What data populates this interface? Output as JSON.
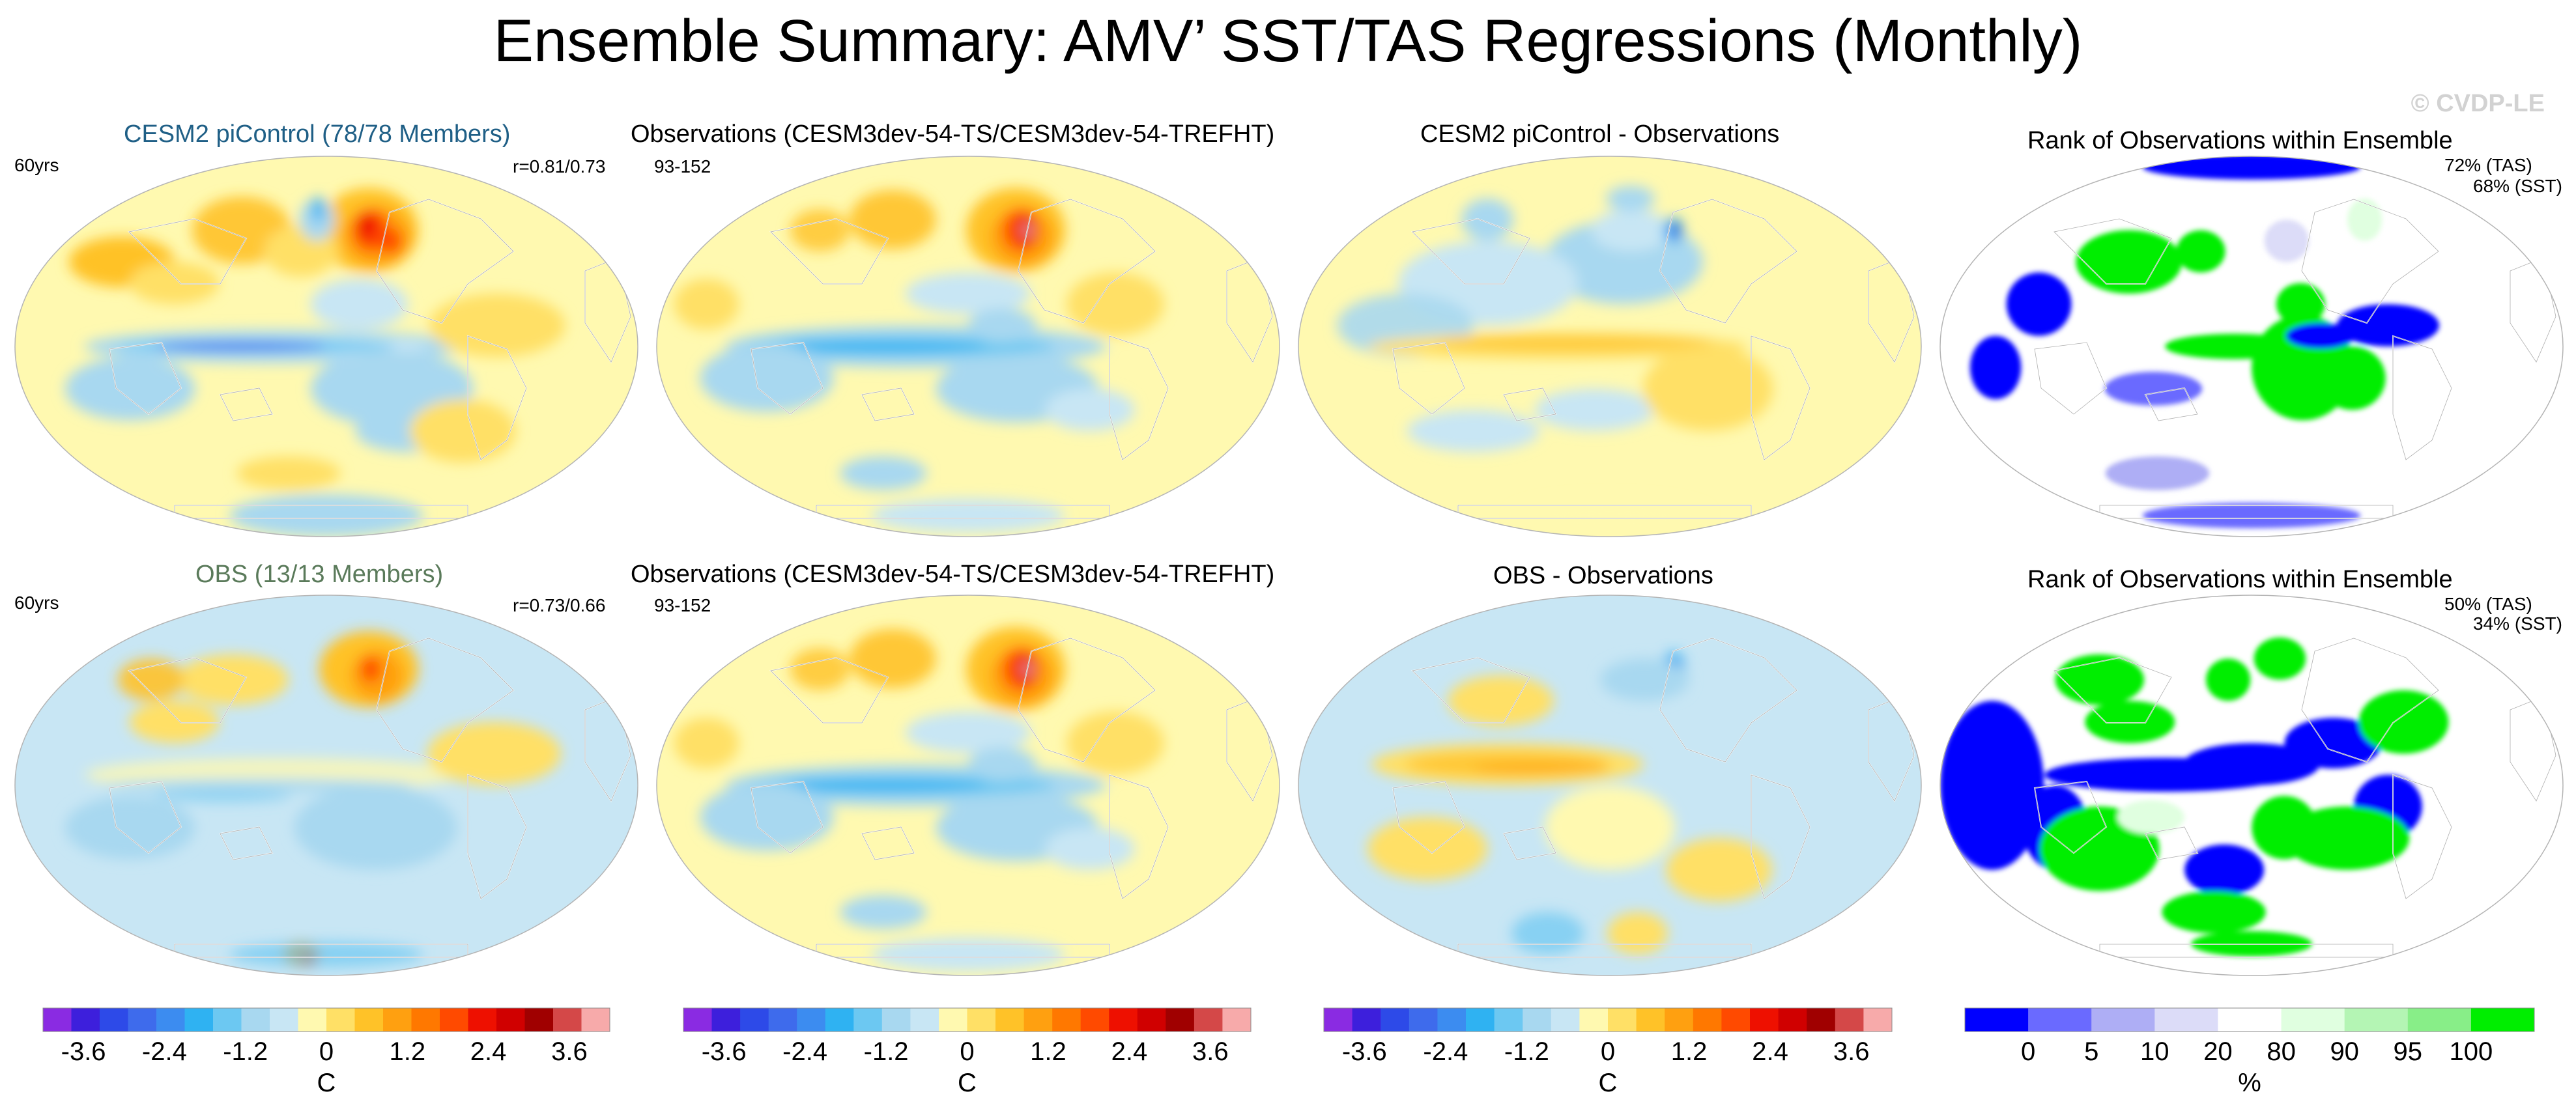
{
  "title": "Ensemble Summary: AMV’ SST/TAS Regressions (Monthly)",
  "watermark": "© CVDP-LE",
  "colors": {
    "cesm2_title": "#1f5f86",
    "obs_title": "#5a7a5a",
    "diverging": [
      "#8a2be2",
      "#3d1fdc",
      "#2d4ae8",
      "#3e6bec",
      "#3c8cf0",
      "#2fb2f2",
      "#6cc8f2",
      "#a8d8f0",
      "#c8e6f4",
      "#fff9b0",
      "#ffe066",
      "#ffc228",
      "#ffa010",
      "#ff7800",
      "#ff4a00",
      "#ee1000",
      "#d00000",
      "#a00000",
      "#d44848",
      "#f7aaaa"
    ],
    "rank": [
      "#0000ff",
      "#6a6aff",
      "#aeaef5",
      "#dcdcf8",
      "#ffffff",
      "#e0ffe0",
      "#b4f5b4",
      "#88ee88",
      "#00ee00"
    ]
  },
  "rows": [
    {
      "panels": [
        {
          "title": "CESM2 piControl (78/78 Members)",
          "left_label": "60yrs",
          "right_label": "r=0.81/0.73",
          "kind": "diverging",
          "scheme": "cesm_pi"
        },
        {
          "title": "Observations (CESM3dev-54-TS/CESM3dev-54-TREFHT)",
          "left_label": "93-152",
          "right_label": "",
          "kind": "diverging",
          "scheme": "obs"
        },
        {
          "title": "CESM2 piControl - Observations",
          "left_label": "",
          "right_label": "",
          "kind": "diverging",
          "scheme": "diff1"
        },
        {
          "title": "Rank of Observations within Ensemble",
          "left_label": "",
          "right_label": "72% (TAS)",
          "right_label2": "68% (SST)",
          "kind": "rank",
          "scheme": "rank1"
        }
      ]
    },
    {
      "panels": [
        {
          "title": "OBS (13/13 Members)",
          "left_label": "60yrs",
          "right_label": "r=0.73/0.66",
          "kind": "diverging",
          "scheme": "obs_ens"
        },
        {
          "title": "Observations (CESM3dev-54-TS/CESM3dev-54-TREFHT)",
          "left_label": "93-152",
          "right_label": "",
          "kind": "diverging",
          "scheme": "obs"
        },
        {
          "title": "OBS - Observations",
          "left_label": "",
          "right_label": "",
          "kind": "diverging",
          "scheme": "diff2"
        },
        {
          "title": "Rank of Observations within Ensemble",
          "left_label": "",
          "right_label": "50% (TAS)",
          "right_label2": "34% (SST)",
          "kind": "rank",
          "scheme": "rank2"
        }
      ]
    }
  ],
  "colorbars": [
    {
      "type": "diverging",
      "ticks": [
        "-3.6",
        "-2.4",
        "-1.2",
        "0",
        "1.2",
        "2.4",
        "3.6"
      ],
      "tick_values": [
        -3.6,
        -2.4,
        -1.2,
        0,
        1.2,
        2.4,
        3.6
      ],
      "range": [
        -4.2,
        4.2
      ],
      "unit": "C"
    },
    {
      "type": "diverging",
      "ticks": [
        "-3.6",
        "-2.4",
        "-1.2",
        "0",
        "1.2",
        "2.4",
        "3.6"
      ],
      "tick_values": [
        -3.6,
        -2.4,
        -1.2,
        0,
        1.2,
        2.4,
        3.6
      ],
      "range": [
        -4.2,
        4.2
      ],
      "unit": "C"
    },
    {
      "type": "diverging",
      "ticks": [
        "-3.6",
        "-2.4",
        "-1.2",
        "0",
        "1.2",
        "2.4",
        "3.6"
      ],
      "tick_values": [
        -3.6,
        -2.4,
        -1.2,
        0,
        1.2,
        2.4,
        3.6
      ],
      "range": [
        -4.2,
        4.2
      ],
      "unit": "C"
    },
    {
      "type": "rank",
      "ticks": [
        "0",
        "5",
        "10",
        "20",
        "80",
        "90",
        "95",
        "100"
      ],
      "tick_boundaries": [
        1,
        2,
        3,
        4,
        5,
        6,
        7,
        8
      ],
      "n_bins": 9,
      "unit": "%"
    }
  ]
}
